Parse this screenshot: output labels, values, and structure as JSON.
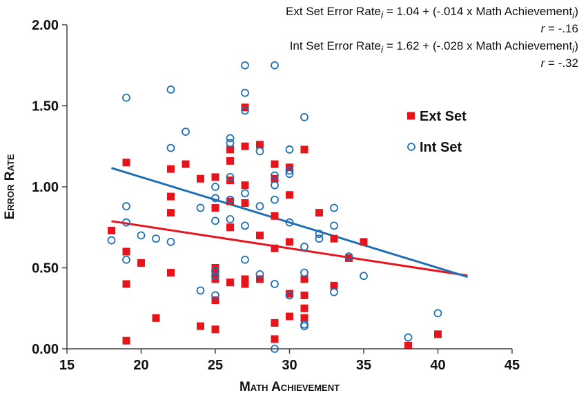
{
  "chart_data": {
    "type": "scatter",
    "title": "",
    "xlabel": "Math Achievement",
    "ylabel": "Error Rate",
    "xlim": [
      15,
      45
    ],
    "ylim": [
      0,
      2
    ],
    "x_ticks": [
      "15",
      "20",
      "25",
      "30",
      "35",
      "40",
      "45"
    ],
    "y_ticks": [
      "0.00",
      "0.50",
      "1.00",
      "1.50",
      "2.00"
    ],
    "legend_position": "center-right",
    "annotations": [
      {
        "prefix": "Ext Set Error Rate",
        "sub": "i",
        "mid": " = 1.04 + (-.014 x Math Achievement",
        "sub2": "i",
        "suffix": ")"
      },
      {
        "prefix": "",
        "r_label": "r",
        "r_value": " = -.16"
      },
      {
        "prefix": "Int Set Error Rate",
        "sub": "i",
        "mid": " = 1.62 + (-.028 x Math Achievement",
        "sub2": "i",
        "suffix": ")"
      },
      {
        "prefix": "",
        "r_label": "r",
        "r_value": " = -.32"
      }
    ],
    "series": [
      {
        "name": "Ext Set",
        "color": "#e8141c",
        "marker": "square",
        "trend": {
          "intercept": 1.04,
          "slope": -0.014,
          "x_range": [
            18,
            42
          ]
        },
        "points": [
          [
            18,
            0.73
          ],
          [
            19,
            1.15
          ],
          [
            19,
            0.6
          ],
          [
            19,
            0.4
          ],
          [
            19,
            0.05
          ],
          [
            20,
            0.53
          ],
          [
            21,
            0.19
          ],
          [
            22,
            1.11
          ],
          [
            22,
            0.94
          ],
          [
            22,
            0.84
          ],
          [
            22,
            0.47
          ],
          [
            23,
            1.14
          ],
          [
            24,
            1.05
          ],
          [
            24,
            0.14
          ],
          [
            25,
            1.06
          ],
          [
            25,
            0.87
          ],
          [
            25,
            0.5
          ],
          [
            25,
            0.46
          ],
          [
            25,
            0.43
          ],
          [
            25,
            0.3
          ],
          [
            25,
            0.12
          ],
          [
            26,
            1.23
          ],
          [
            26,
            1.16
          ],
          [
            26,
            1.04
          ],
          [
            26,
            0.91
          ],
          [
            26,
            0.75
          ],
          [
            26,
            0.41
          ],
          [
            27,
            1.49
          ],
          [
            27,
            1.25
          ],
          [
            27,
            1.01
          ],
          [
            27,
            0.9
          ],
          [
            27,
            0.43
          ],
          [
            27,
            0.4
          ],
          [
            28,
            1.26
          ],
          [
            28,
            0.7
          ],
          [
            28,
            0.43
          ],
          [
            29,
            1.14
          ],
          [
            29,
            1.05
          ],
          [
            29,
            0.82
          ],
          [
            29,
            0.62
          ],
          [
            29,
            0.16
          ],
          [
            29,
            0.06
          ],
          [
            30,
            1.12
          ],
          [
            30,
            0.95
          ],
          [
            30,
            0.66
          ],
          [
            30,
            0.34
          ],
          [
            30,
            0.2
          ],
          [
            31,
            1.23
          ],
          [
            31,
            0.43
          ],
          [
            31,
            0.33
          ],
          [
            31,
            0.25
          ],
          [
            31,
            0.19
          ],
          [
            32,
            0.84
          ],
          [
            33,
            0.68
          ],
          [
            33,
            0.39
          ],
          [
            34,
            0.56
          ],
          [
            35,
            0.66
          ],
          [
            38,
            0.02
          ],
          [
            40,
            0.09
          ]
        ]
      },
      {
        "name": "Int Set",
        "color": "#1f6fb5",
        "marker": "circle",
        "trend": {
          "intercept": 1.62,
          "slope": -0.028,
          "x_range": [
            18,
            42
          ]
        },
        "points": [
          [
            18,
            0.67
          ],
          [
            19,
            1.55
          ],
          [
            19,
            0.88
          ],
          [
            19,
            0.78
          ],
          [
            19,
            0.55
          ],
          [
            20,
            0.7
          ],
          [
            21,
            0.68
          ],
          [
            22,
            1.6
          ],
          [
            22,
            1.24
          ],
          [
            22,
            0.66
          ],
          [
            23,
            1.34
          ],
          [
            24,
            0.87
          ],
          [
            24,
            0.36
          ],
          [
            25,
            1.0
          ],
          [
            25,
            0.93
          ],
          [
            25,
            0.79
          ],
          [
            25,
            0.48
          ],
          [
            25,
            0.45
          ],
          [
            25,
            0.33
          ],
          [
            26,
            1.3
          ],
          [
            26,
            1.27
          ],
          [
            26,
            1.06
          ],
          [
            26,
            0.92
          ],
          [
            26,
            0.8
          ],
          [
            27,
            1.75
          ],
          [
            27,
            1.58
          ],
          [
            27,
            1.47
          ],
          [
            27,
            0.96
          ],
          [
            27,
            0.76
          ],
          [
            27,
            0.55
          ],
          [
            28,
            1.22
          ],
          [
            28,
            0.88
          ],
          [
            28,
            0.46
          ],
          [
            29,
            1.75
          ],
          [
            29,
            1.07
          ],
          [
            29,
            1.01
          ],
          [
            29,
            0.92
          ],
          [
            29,
            0.4
          ],
          [
            29,
            0.0
          ],
          [
            30,
            1.23
          ],
          [
            30,
            1.1
          ],
          [
            30,
            1.08
          ],
          [
            30,
            0.78
          ],
          [
            30,
            0.33
          ],
          [
            31,
            1.43
          ],
          [
            31,
            0.63
          ],
          [
            31,
            0.47
          ],
          [
            31,
            0.15
          ],
          [
            31,
            0.14
          ],
          [
            32,
            0.71
          ],
          [
            32,
            0.68
          ],
          [
            33,
            0.87
          ],
          [
            33,
            0.76
          ],
          [
            33,
            0.35
          ],
          [
            34,
            0.57
          ],
          [
            35,
            0.45
          ],
          [
            38,
            0.07
          ],
          [
            40,
            0.22
          ]
        ]
      }
    ]
  }
}
